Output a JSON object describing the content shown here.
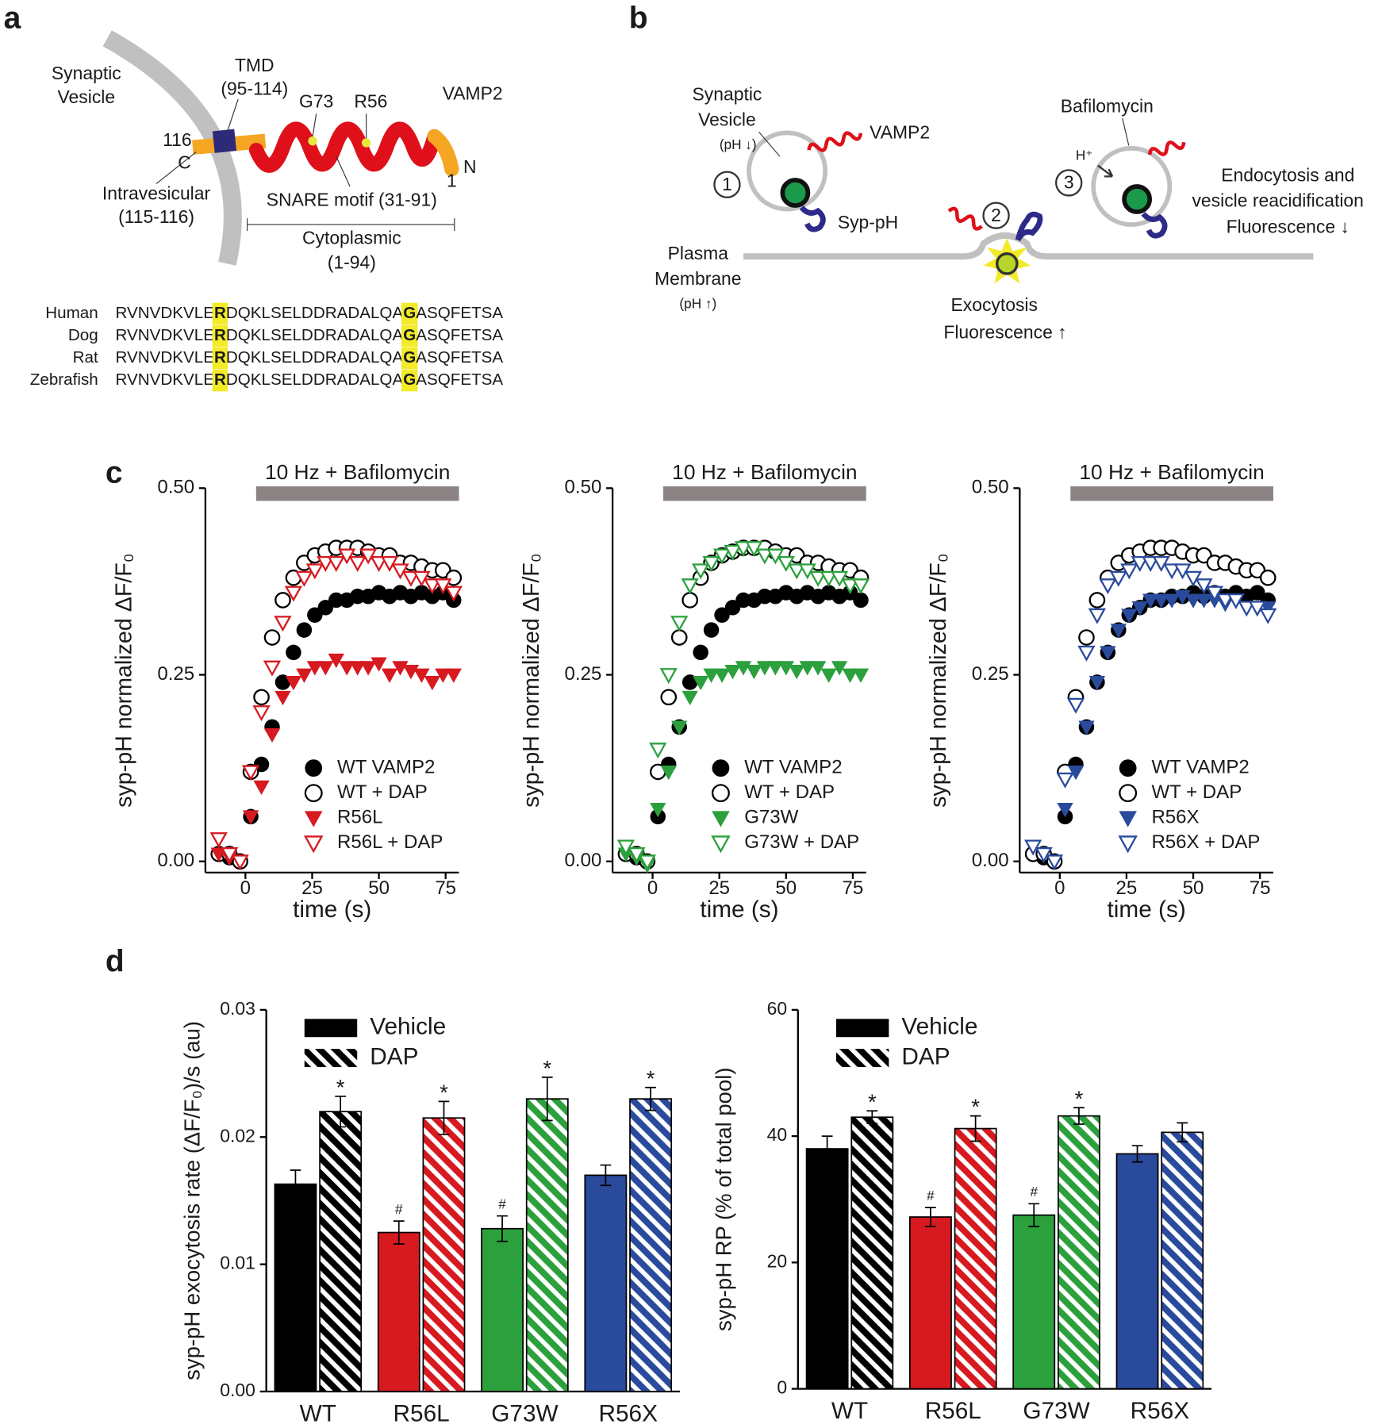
{
  "panel_labels": [
    "a",
    "b",
    "c",
    "d"
  ],
  "diagram_a": {
    "labels": [
      "Synaptic",
      "Vesicle",
      "TMD",
      "(95-114)",
      "G73",
      "R56",
      "VAMP2",
      "116",
      "C",
      "N",
      "1",
      "Intravesicular",
      "(115-116)",
      "SNARE motif (31-91)",
      "Cytoplasmic",
      "(1-94)"
    ],
    "species": [
      "Human",
      "Dog",
      "Rat",
      "Zebrafish"
    ],
    "sequences": [
      [
        "RVNVDKVLE",
        "R",
        "DQKLSELDDRADALQA",
        "G",
        "ASQFETSA"
      ],
      [
        "RVNVDKVLE",
        "R",
        "DQKLSELDDRADALQA",
        "G",
        "ASQFETSA"
      ],
      [
        "RVNVDKVLE",
        "R",
        "DQKLSELDDRADALQA",
        "G",
        "ASQFETSA"
      ],
      [
        "RVNVDKVLE",
        "R",
        "DQKLSELDDRADALQA",
        "G",
        "ASQFETSA"
      ]
    ]
  },
  "diagram_b": {
    "labels": [
      "Synaptic",
      "Vesicle",
      "(pH ↓)",
      "VAMP2",
      "1",
      "Syp-pH",
      "Plasma",
      "Membrane",
      "(pH ↑)",
      "2",
      "Exocytosis",
      "Fluorescence ↑",
      "Bafilomycin",
      "H⁺",
      "3",
      "Endocytosis and",
      "vesicle reacidification",
      "Fluorescence ↓"
    ]
  },
  "chart_data": [
    {
      "type": "line",
      "annotation": "10 Hz + Bafilomycin",
      "annotation_range": [
        4,
        80
      ],
      "xlabel": "time (s)",
      "ylabel": "syp-pH normalized ΔF/F₀",
      "xlim": [
        -15,
        80
      ],
      "xticks": [
        0,
        25,
        50,
        75
      ],
      "ylim": [
        -0.015,
        0.5
      ],
      "yticks": [
        {
          "value": 0,
          "label": "0.00"
        },
        {
          "value": 0.25,
          "label": "0.25"
        },
        {
          "value": 0.5,
          "label": "0.50"
        }
      ],
      "legend": "lower right",
      "x": [
        -10,
        -6,
        -2,
        2,
        6,
        10,
        14,
        18,
        22,
        26,
        30,
        34,
        38,
        42,
        46,
        50,
        54,
        58,
        62,
        66,
        70,
        74,
        78
      ],
      "series": [
        {
          "name": "WT VAMP2",
          "marker": "circle",
          "color": "#000000",
          "values": [
            0.01,
            0.005,
            0.0,
            0.06,
            0.13,
            0.18,
            0.24,
            0.28,
            0.31,
            0.33,
            0.34,
            0.35,
            0.35,
            0.355,
            0.355,
            0.36,
            0.355,
            0.36,
            0.355,
            0.36,
            0.355,
            0.36,
            0.35
          ]
        },
        {
          "name": "WT + DAP",
          "marker": "circle-open",
          "color": "#000000",
          "values": [
            0.01,
            0.01,
            0.0,
            0.12,
            0.22,
            0.3,
            0.35,
            0.38,
            0.4,
            0.41,
            0.415,
            0.42,
            0.42,
            0.42,
            0.415,
            0.41,
            0.41,
            0.4,
            0.4,
            0.395,
            0.39,
            0.39,
            0.38
          ]
        },
        {
          "name": "R56L",
          "marker": "triangle",
          "color": "#d71920",
          "values": [
            0.01,
            0.005,
            0.0,
            0.06,
            0.1,
            0.17,
            0.22,
            0.24,
            0.25,
            0.26,
            0.26,
            0.27,
            0.26,
            0.26,
            0.26,
            0.265,
            0.25,
            0.26,
            0.255,
            0.25,
            0.24,
            0.25,
            0.25
          ]
        },
        {
          "name": "R56L + DAP",
          "marker": "triangle-open",
          "color": "#d71920",
          "values": [
            0.03,
            0.01,
            0.0,
            0.12,
            0.2,
            0.26,
            0.32,
            0.36,
            0.38,
            0.39,
            0.4,
            0.4,
            0.41,
            0.4,
            0.41,
            0.4,
            0.4,
            0.39,
            0.38,
            0.38,
            0.37,
            0.37,
            0.36
          ]
        }
      ]
    },
    {
      "type": "line",
      "annotation": "10 Hz + Bafilomycin",
      "annotation_range": [
        4,
        80
      ],
      "xlabel": "time (s)",
      "ylabel": "syp-pH normalized ΔF/F₀",
      "xlim": [
        -15,
        80
      ],
      "xticks": [
        0,
        25,
        50,
        75
      ],
      "ylim": [
        -0.015,
        0.5
      ],
      "yticks": [
        {
          "value": 0,
          "label": "0.00"
        },
        {
          "value": 0.25,
          "label": "0.25"
        },
        {
          "value": 0.5,
          "label": "0.50"
        }
      ],
      "legend": "lower right",
      "x": [
        -10,
        -6,
        -2,
        2,
        6,
        10,
        14,
        18,
        22,
        26,
        30,
        34,
        38,
        42,
        46,
        50,
        54,
        58,
        62,
        66,
        70,
        74,
        78
      ],
      "series": [
        {
          "name": "WT VAMP2",
          "marker": "circle",
          "color": "#000000",
          "values": [
            0.01,
            0.005,
            0.0,
            0.06,
            0.13,
            0.18,
            0.24,
            0.28,
            0.31,
            0.33,
            0.34,
            0.35,
            0.35,
            0.355,
            0.355,
            0.36,
            0.355,
            0.36,
            0.355,
            0.36,
            0.355,
            0.36,
            0.35
          ]
        },
        {
          "name": "WT + DAP",
          "marker": "circle-open",
          "color": "#000000",
          "values": [
            0.01,
            0.01,
            0.0,
            0.12,
            0.22,
            0.3,
            0.35,
            0.38,
            0.4,
            0.41,
            0.415,
            0.42,
            0.42,
            0.42,
            0.415,
            0.41,
            0.41,
            0.4,
            0.4,
            0.395,
            0.39,
            0.39,
            0.38
          ]
        },
        {
          "name": "G73W",
          "marker": "triangle",
          "color": "#2ca03c",
          "values": [
            0.01,
            0.005,
            -0.005,
            0.07,
            0.12,
            0.18,
            0.22,
            0.24,
            0.25,
            0.25,
            0.255,
            0.26,
            0.255,
            0.26,
            0.26,
            0.26,
            0.255,
            0.26,
            0.26,
            0.25,
            0.26,
            0.25,
            0.25
          ]
        },
        {
          "name": "G73W + DAP",
          "marker": "triangle-open",
          "color": "#2ca03c",
          "values": [
            0.02,
            0.01,
            0.0,
            0.15,
            0.25,
            0.32,
            0.37,
            0.39,
            0.4,
            0.41,
            0.415,
            0.42,
            0.42,
            0.41,
            0.41,
            0.4,
            0.39,
            0.39,
            0.38,
            0.38,
            0.38,
            0.37,
            0.37
          ]
        }
      ]
    },
    {
      "type": "line",
      "annotation": "10 Hz + Bafilomycin",
      "annotation_range": [
        4,
        80
      ],
      "xlabel": "time (s)",
      "ylabel": "syp-pH normalized ΔF/F₀",
      "xlim": [
        -15,
        80
      ],
      "xticks": [
        0,
        25,
        50,
        75
      ],
      "ylim": [
        -0.015,
        0.5
      ],
      "yticks": [
        {
          "value": 0,
          "label": "0.00"
        },
        {
          "value": 0.25,
          "label": "0.25"
        },
        {
          "value": 0.5,
          "label": "0.50"
        }
      ],
      "legend": "lower right",
      "x": [
        -10,
        -6,
        -2,
        2,
        6,
        10,
        14,
        18,
        22,
        26,
        30,
        34,
        38,
        42,
        46,
        50,
        54,
        58,
        62,
        66,
        70,
        74,
        78
      ],
      "series": [
        {
          "name": "WT VAMP2",
          "marker": "circle",
          "color": "#000000",
          "values": [
            0.01,
            0.005,
            0.0,
            0.06,
            0.13,
            0.18,
            0.24,
            0.28,
            0.31,
            0.33,
            0.34,
            0.35,
            0.35,
            0.355,
            0.355,
            0.36,
            0.355,
            0.36,
            0.355,
            0.36,
            0.355,
            0.36,
            0.35
          ]
        },
        {
          "name": "WT + DAP",
          "marker": "circle-open",
          "color": "#000000",
          "values": [
            0.01,
            0.01,
            0.0,
            0.12,
            0.22,
            0.3,
            0.35,
            0.38,
            0.4,
            0.41,
            0.415,
            0.42,
            0.42,
            0.42,
            0.415,
            0.41,
            0.41,
            0.4,
            0.4,
            0.395,
            0.39,
            0.39,
            0.38
          ]
        },
        {
          "name": "R56X",
          "marker": "triangle",
          "color": "#2a4a9c",
          "values": [
            0.02,
            0.01,
            0.0,
            0.07,
            0.12,
            0.18,
            0.24,
            0.28,
            0.31,
            0.33,
            0.34,
            0.35,
            0.35,
            0.35,
            0.355,
            0.35,
            0.35,
            0.35,
            0.345,
            0.35,
            0.34,
            0.34,
            0.34
          ]
        },
        {
          "name": "R56X + DAP",
          "marker": "triangle-open",
          "color": "#2a4a9c",
          "values": [
            0.02,
            0.01,
            0.0,
            0.11,
            0.21,
            0.28,
            0.33,
            0.37,
            0.38,
            0.39,
            0.4,
            0.4,
            0.4,
            0.39,
            0.39,
            0.38,
            0.37,
            0.36,
            0.35,
            0.35,
            0.34,
            0.34,
            0.33
          ]
        }
      ]
    },
    {
      "type": "bar",
      "ylabel": "syp-pH exocytosis rate (ΔF/F₀)/s (au)",
      "categories": [
        "WT",
        "R56L",
        "G73W",
        "R56X"
      ],
      "colors": [
        "#000000",
        "#d71920",
        "#2ca03c",
        "#2a4a9c"
      ],
      "ylim": [
        0,
        0.03
      ],
      "yticks": [
        {
          "value": 0,
          "label": "0.00"
        },
        {
          "value": 0.01,
          "label": "0.01"
        },
        {
          "value": 0.02,
          "label": "0.02"
        },
        {
          "value": 0.03,
          "label": "0.03"
        }
      ],
      "legend": "upper left",
      "series": [
        {
          "name": "Vehicle",
          "pattern": "solid",
          "values": [
            0.0163,
            0.0125,
            0.0128,
            0.017
          ],
          "errors": [
            0.0011,
            0.0009,
            0.001,
            0.0008
          ],
          "annotations": [
            null,
            "#",
            "#",
            null
          ]
        },
        {
          "name": "DAP",
          "pattern": "hatch",
          "values": [
            0.022,
            0.0215,
            0.023,
            0.023
          ],
          "errors": [
            0.0012,
            0.0013,
            0.0017,
            0.0009
          ],
          "annotations": [
            "*",
            "*",
            "*",
            "*"
          ]
        }
      ]
    },
    {
      "type": "bar",
      "ylabel": "syp-pH RP (% of total pool)",
      "categories": [
        "WT",
        "R56L",
        "G73W",
        "R56X"
      ],
      "colors": [
        "#000000",
        "#d71920",
        "#2ca03c",
        "#2a4a9c"
      ],
      "ylim": [
        0,
        60
      ],
      "yticks": [
        0,
        20,
        40,
        60
      ],
      "legend": "upper left",
      "series": [
        {
          "name": "Vehicle",
          "pattern": "solid",
          "values": [
            38,
            27.2,
            27.5,
            37.2
          ],
          "errors": [
            2,
            1.5,
            1.8,
            1.3
          ],
          "annotations": [
            null,
            "#",
            "#",
            null
          ]
        },
        {
          "name": "DAP",
          "pattern": "hatch",
          "values": [
            43,
            41.2,
            43.2,
            40.6
          ],
          "errors": [
            1,
            2,
            1.3,
            1.5
          ],
          "annotations": [
            "*",
            "*",
            "*",
            null
          ]
        }
      ]
    }
  ]
}
